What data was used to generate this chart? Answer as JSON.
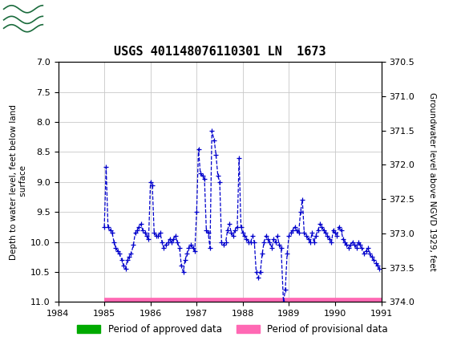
{
  "title": "USGS 401148076110301 LN  1673",
  "ylabel_left": "Depth to water level, feet below land\n surface",
  "ylabel_right": "Groundwater level above NGVD 1929, feet",
  "ylim_left": [
    7.0,
    11.0
  ],
  "ylim_right": [
    374.0,
    370.5
  ],
  "yticks_left": [
    7.0,
    7.5,
    8.0,
    8.5,
    9.0,
    9.5,
    10.0,
    10.5,
    11.0
  ],
  "yticks_right": [
    374.0,
    373.5,
    373.0,
    372.5,
    372.0,
    371.5,
    371.0,
    370.5
  ],
  "ytick_labels_right": [
    "374.0",
    "373.5",
    "373.0",
    "372.5",
    "372.0",
    "371.5",
    "371.0",
    "370.5"
  ],
  "xlim": [
    1984.0,
    1991.0
  ],
  "xticks": [
    1984,
    1985,
    1986,
    1987,
    1988,
    1989,
    1990,
    1991
  ],
  "header_color": "#1a6b3c",
  "bg_color": "#ffffff",
  "grid_color": "#c8c8c8",
  "line_color": "#0000cc",
  "provisional_color": "#ff69b4",
  "approved_color": "#00aa00",
  "data_x": [
    1985.0,
    1985.04,
    1985.08,
    1985.13,
    1985.17,
    1985.21,
    1985.25,
    1985.29,
    1985.33,
    1985.38,
    1985.42,
    1985.46,
    1985.5,
    1985.54,
    1985.58,
    1985.63,
    1985.67,
    1985.71,
    1985.75,
    1985.79,
    1985.83,
    1985.88,
    1985.92,
    1985.96,
    1986.0,
    1986.04,
    1986.08,
    1986.13,
    1986.17,
    1986.21,
    1986.25,
    1986.29,
    1986.33,
    1986.38,
    1986.42,
    1986.46,
    1986.5,
    1986.54,
    1986.58,
    1986.63,
    1986.67,
    1986.71,
    1986.75,
    1986.79,
    1986.83,
    1986.88,
    1986.92,
    1986.96,
    1987.0,
    1987.04,
    1987.08,
    1987.13,
    1987.17,
    1987.21,
    1987.25,
    1987.29,
    1987.33,
    1987.38,
    1987.42,
    1987.46,
    1987.5,
    1987.54,
    1987.58,
    1987.63,
    1987.67,
    1987.71,
    1987.75,
    1987.79,
    1987.83,
    1987.88,
    1987.92,
    1987.96,
    1988.0,
    1988.04,
    1988.08,
    1988.13,
    1988.17,
    1988.21,
    1988.25,
    1988.29,
    1988.33,
    1988.38,
    1988.42,
    1988.46,
    1988.5,
    1988.54,
    1988.58,
    1988.63,
    1988.67,
    1988.71,
    1988.75,
    1988.79,
    1988.83,
    1988.88,
    1988.92,
    1988.96,
    1989.0,
    1989.04,
    1989.08,
    1989.13,
    1989.17,
    1989.21,
    1989.25,
    1989.29,
    1989.33,
    1989.38,
    1989.42,
    1989.46,
    1989.5,
    1989.54,
    1989.58,
    1989.63,
    1989.67,
    1989.71,
    1989.75,
    1989.79,
    1989.83,
    1989.88,
    1989.92,
    1989.96,
    1990.0,
    1990.04,
    1990.08,
    1990.13,
    1990.17,
    1990.21,
    1990.25,
    1990.29,
    1990.33,
    1990.38,
    1990.42,
    1990.46,
    1990.5,
    1990.54,
    1990.58,
    1990.63,
    1990.67,
    1990.71,
    1990.75,
    1990.79,
    1990.83,
    1990.88,
    1990.92,
    1990.96
  ],
  "data_y": [
    9.75,
    8.75,
    9.75,
    9.8,
    9.85,
    10.0,
    10.1,
    10.15,
    10.2,
    10.3,
    10.4,
    10.45,
    10.3,
    10.25,
    10.2,
    10.05,
    9.85,
    9.8,
    9.75,
    9.7,
    9.8,
    9.85,
    9.9,
    9.95,
    9.0,
    9.05,
    9.85,
    9.9,
    9.9,
    9.85,
    10.0,
    10.1,
    10.05,
    10.0,
    9.95,
    10.0,
    9.95,
    9.9,
    10.0,
    10.1,
    10.4,
    10.5,
    10.3,
    10.2,
    10.1,
    10.05,
    10.1,
    10.15,
    9.5,
    8.45,
    8.85,
    8.9,
    8.95,
    9.8,
    9.85,
    10.1,
    8.15,
    8.3,
    8.55,
    8.9,
    9.0,
    10.0,
    10.05,
    10.0,
    9.8,
    9.7,
    9.85,
    9.9,
    9.8,
    9.75,
    8.6,
    9.75,
    9.85,
    9.9,
    9.95,
    10.0,
    10.0,
    9.9,
    10.0,
    10.5,
    10.6,
    10.5,
    10.2,
    10.0,
    9.9,
    9.95,
    10.0,
    10.1,
    9.95,
    10.0,
    9.9,
    10.05,
    10.1,
    11.0,
    10.8,
    10.2,
    9.9,
    9.85,
    9.8,
    9.75,
    9.8,
    9.85,
    9.5,
    9.3,
    9.85,
    9.9,
    9.95,
    10.0,
    9.85,
    10.0,
    9.9,
    9.8,
    9.7,
    9.75,
    9.8,
    9.85,
    9.9,
    9.95,
    10.0,
    9.8,
    9.85,
    9.9,
    9.75,
    9.8,
    9.95,
    10.0,
    10.05,
    10.1,
    10.05,
    10.0,
    10.05,
    10.1,
    10.0,
    10.05,
    10.1,
    10.2,
    10.15,
    10.1,
    10.2,
    10.25,
    10.3,
    10.35,
    10.4,
    10.45
  ],
  "provisional_bar_x_start": 1985.0,
  "provisional_bar_x_end": 1991.0,
  "provisional_bar_y": 11.0
}
